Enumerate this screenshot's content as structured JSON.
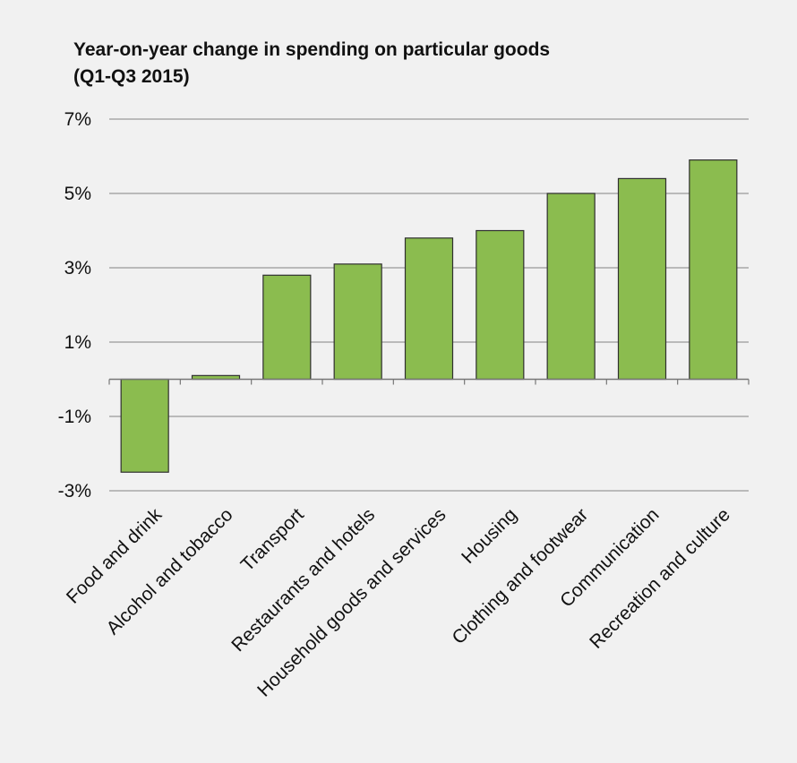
{
  "chart_data": {
    "type": "bar",
    "title": "Year-on-year change in spending on particular goods",
    "subtitle": "(Q1-Q3 2015)",
    "categories": [
      "Food and drink",
      "Alcohol and tobacco",
      "Transport",
      "Restaurants and hotels",
      "Household goods and services",
      "Housing",
      "Clothing and footwear",
      "Communication",
      "Recreation and culture"
    ],
    "values": [
      -2.5,
      0.1,
      2.8,
      3.1,
      3.8,
      4.0,
      5.0,
      5.4,
      5.9
    ],
    "ylim": [
      -3,
      7
    ],
    "y_ticks": [
      7,
      5,
      3,
      1,
      -1,
      -3
    ],
    "y_tick_labels": [
      "7%",
      "5%",
      "3%",
      "1%",
      "-1%",
      "-3%"
    ],
    "grid": true,
    "legend": "none",
    "bar_color": "#8bbc4f",
    "bar_edge_color": "#2f2f2f",
    "grid_color": "#9a9a9a"
  }
}
